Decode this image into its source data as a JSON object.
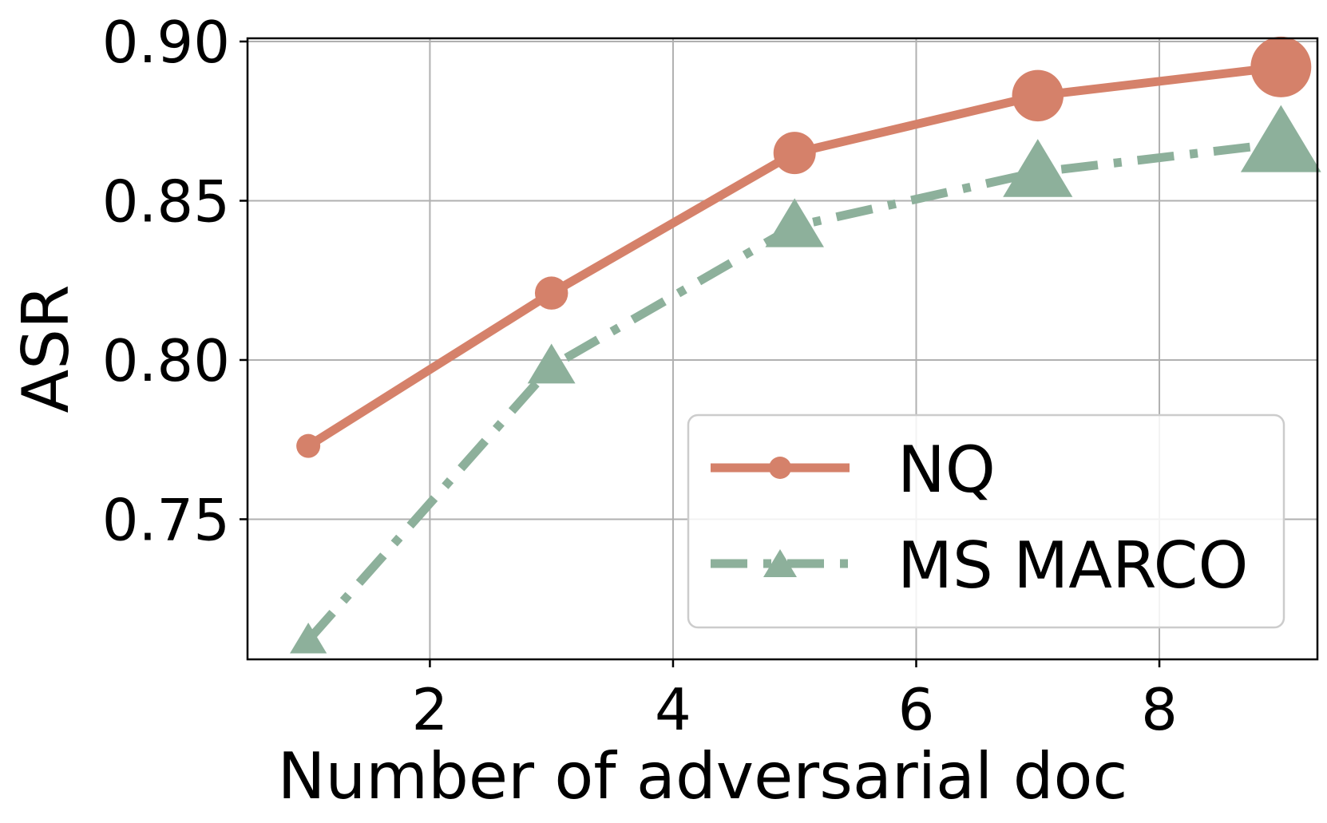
{
  "chart_data": {
    "type": "line",
    "title": "",
    "xlabel": "Number of adversarial doc",
    "ylabel": "ASR",
    "xlim": [
      0.5,
      9.3
    ],
    "ylim": [
      0.706,
      0.901
    ],
    "xticks": [
      2,
      4,
      6,
      8
    ],
    "xtick_labels": [
      "2",
      "4",
      "6",
      "8"
    ],
    "yticks": [
      0.75,
      0.8,
      0.85,
      0.9
    ],
    "ytick_labels": [
      "0.75",
      "0.80",
      "0.85",
      "0.90"
    ],
    "grid": true,
    "legend_position": "lower-right",
    "x": [
      1,
      3,
      5,
      7,
      9
    ],
    "series": [
      {
        "name": "NQ",
        "values": [
          0.773,
          0.821,
          0.865,
          0.883,
          0.892
        ],
        "color": "#d5816a",
        "marker": "circle",
        "linestyle": "solid",
        "marker_growth": "increasing"
      },
      {
        "name": "MS MARCO",
        "values": [
          0.712,
          0.798,
          0.842,
          0.859,
          0.868
        ],
        "color": "#8db09b",
        "marker": "triangle",
        "linestyle": "dashdot",
        "marker_growth": "increasing"
      }
    ]
  }
}
